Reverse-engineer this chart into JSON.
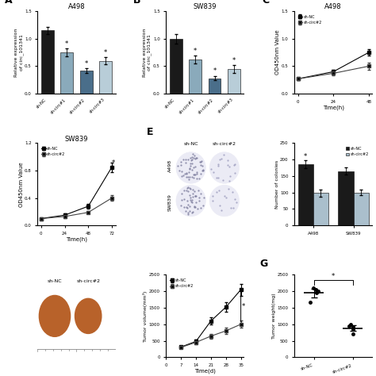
{
  "panel_A": {
    "title": "A498",
    "categories": [
      "sh-NC",
      "sh-circ#1",
      "sh-circ#2",
      "sh-circ#3"
    ],
    "values": [
      1.15,
      0.75,
      0.42,
      0.6
    ],
    "errors": [
      0.07,
      0.07,
      0.04,
      0.06
    ],
    "colors": [
      "#1a1a1a",
      "#8aaabb",
      "#4a6e8a",
      "#b8cdd8"
    ],
    "ylabel": "Relative expression\nof circ_101341",
    "ylim": [
      0,
      1.5
    ],
    "yticks": [
      0.0,
      0.5,
      1.0,
      1.5
    ],
    "sig": [
      false,
      true,
      true,
      true
    ]
  },
  "panel_B": {
    "title": "SW839",
    "categories": [
      "sh-NC",
      "sh-circ#1",
      "sh-circ#2",
      "sh-circ#3"
    ],
    "values": [
      1.0,
      0.62,
      0.28,
      0.45
    ],
    "errors": [
      0.09,
      0.07,
      0.04,
      0.07
    ],
    "colors": [
      "#1a1a1a",
      "#8aaabb",
      "#4a6e8a",
      "#b8cdd8"
    ],
    "ylabel": "Relative expression\nof circ_101341",
    "ylim": [
      0,
      1.5
    ],
    "yticks": [
      0.0,
      0.5,
      1.0,
      1.5
    ],
    "sig": [
      false,
      true,
      true,
      true
    ]
  },
  "panel_C": {
    "title": "A498",
    "xlabel": "Time(h)",
    "ylabel": "OD450nm Value",
    "time": [
      0,
      24,
      48
    ],
    "sh_NC": [
      0.27,
      0.4,
      0.75
    ],
    "sh_circ2": [
      0.27,
      0.37,
      0.5
    ],
    "sh_NC_err": [
      0.02,
      0.03,
      0.06
    ],
    "sh_circ2_err": [
      0.02,
      0.03,
      0.06
    ],
    "ylim": [
      0,
      1.5
    ],
    "yticks": [
      0.0,
      0.5,
      1.0,
      1.5
    ],
    "xticks": [
      0,
      24,
      48
    ]
  },
  "panel_D": {
    "title": "SW839",
    "xlabel": "Time(h)",
    "ylabel": "OD450nm Value",
    "time": [
      0,
      24,
      48,
      72
    ],
    "sh_NC": [
      0.1,
      0.15,
      0.28,
      0.85
    ],
    "sh_circ2": [
      0.1,
      0.13,
      0.19,
      0.4
    ],
    "sh_NC_err": [
      0.01,
      0.02,
      0.03,
      0.07
    ],
    "sh_circ2_err": [
      0.01,
      0.02,
      0.02,
      0.04
    ],
    "ylim": [
      0,
      1.2
    ],
    "yticks": [
      0.0,
      0.4,
      0.8,
      1.2
    ],
    "xticks": [
      0,
      24,
      48,
      72
    ]
  },
  "panel_F": {
    "categories": [
      "A498",
      "SW839"
    ],
    "sh_NC_vals": [
      185,
      165
    ],
    "sh_NC_errs": [
      12,
      10
    ],
    "sh_circ2_vals": [
      98,
      100
    ],
    "sh_circ2_errs": [
      10,
      9
    ],
    "ylabel": "Number of colonies",
    "ylim": [
      0,
      250
    ],
    "yticks": [
      0,
      50,
      100,
      150,
      200,
      250
    ],
    "colors_nc": "#1a1a1a",
    "colors_circ": "#aabfcc"
  },
  "panel_H": {
    "time": [
      7,
      14,
      21,
      28,
      35
    ],
    "sh_NC": [
      310,
      480,
      1100,
      1520,
      2050
    ],
    "sh_circ2": [
      300,
      450,
      640,
      800,
      1000
    ],
    "sh_NC_err": [
      35,
      55,
      100,
      140,
      180
    ],
    "sh_circ2_err": [
      30,
      50,
      70,
      90,
      110
    ],
    "xlabel": "Time(d)",
    "ylabel": "Tumor volume(mm³)",
    "ylim": [
      0,
      2500
    ],
    "yticks": [
      0,
      500,
      1000,
      1500,
      2000,
      2500
    ],
    "xticks": [
      0,
      7,
      14,
      21,
      28,
      35
    ]
  },
  "panel_G": {
    "categories": [
      "sh-NC",
      "sh-circ#2"
    ],
    "mean_vals": [
      2000,
      900
    ],
    "ylabel": "Tumor weight(mg)",
    "ylim": [
      0,
      2500
    ],
    "yticks": [
      0,
      500,
      1000,
      1500,
      2000,
      2500
    ],
    "individual_nc": [
      1680,
      1950,
      2100,
      2050,
      2000
    ],
    "individual_circ": [
      700,
      850,
      950,
      1000,
      920
    ]
  },
  "bg_color": "#ffffff"
}
